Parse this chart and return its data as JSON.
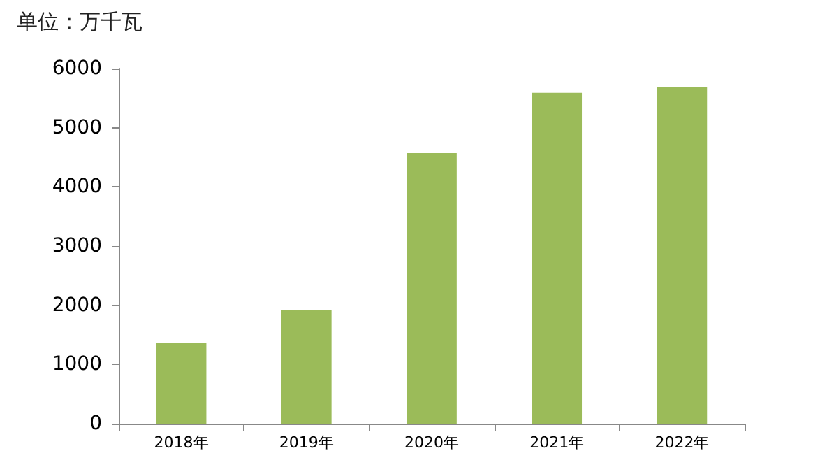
{
  "chart_data": {
    "type": "bar",
    "ylabel": "单位：万千瓦",
    "categories": [
      "2018年",
      "2019年",
      "2020年",
      "2021年",
      "2022年"
    ],
    "values": [
      1360,
      1920,
      4570,
      5590,
      5690
    ],
    "color": "#9bbb59",
    "ylim": [
      0,
      6000
    ],
    "yticks": [
      0,
      1000,
      2000,
      3000,
      4000,
      5000,
      6000
    ],
    "grid": false
  }
}
